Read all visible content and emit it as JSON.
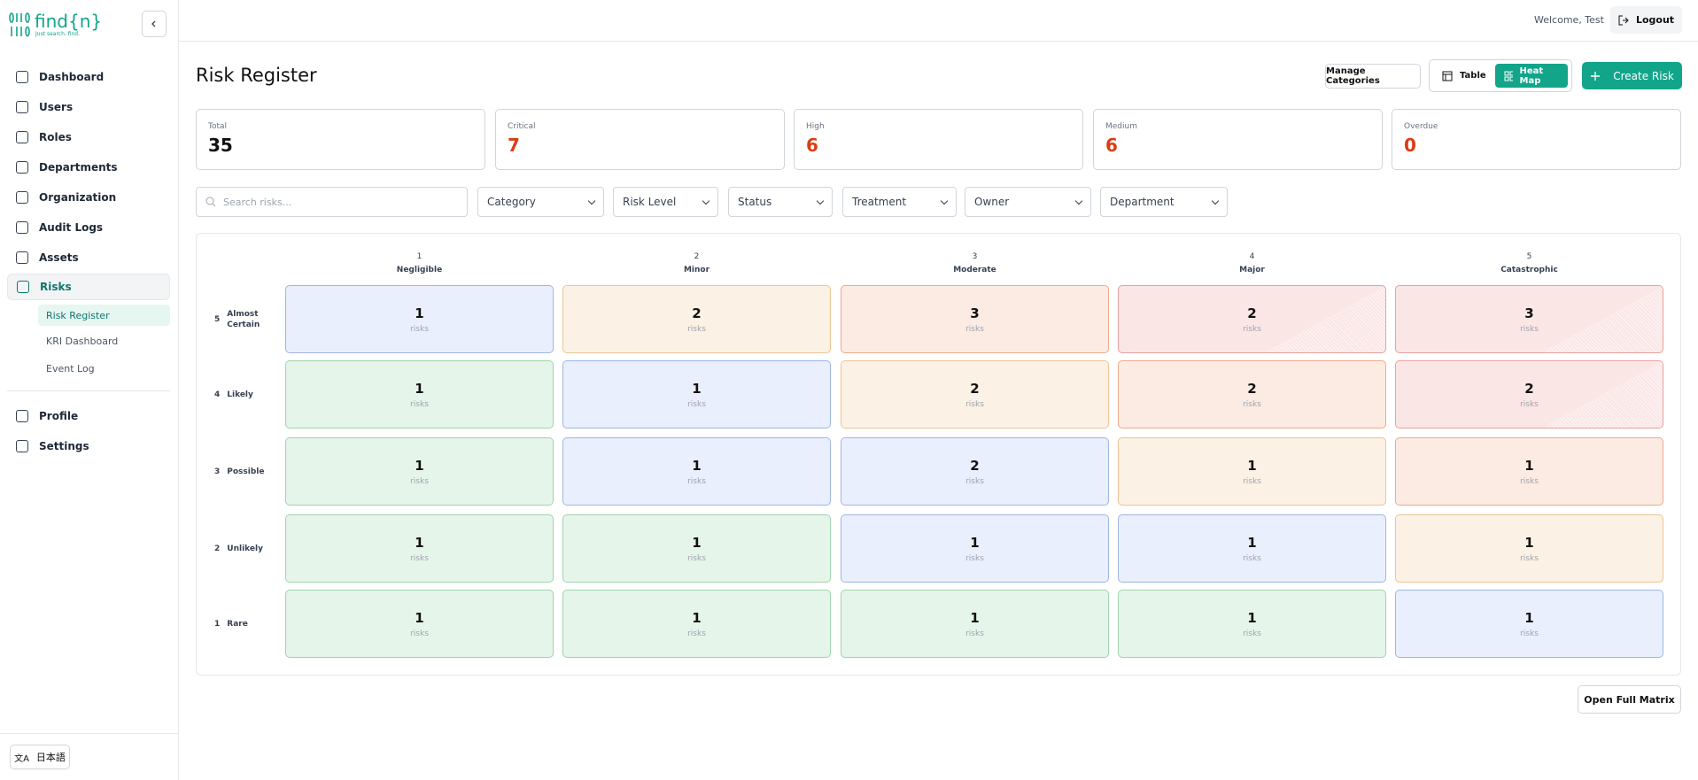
{
  "brand": {
    "name": "find{n}",
    "tagline": "Just search. find."
  },
  "sidebar": {
    "nav": [
      "Dashboard",
      "Users",
      "Roles",
      "Departments",
      "Organization",
      "Audit Logs",
      "Assets"
    ],
    "active": "Risks",
    "sub": [
      "Risk Register",
      "KRI Dashboard",
      "Event Log"
    ],
    "bottom": [
      "Profile",
      "Settings"
    ],
    "language": "日本語"
  },
  "header": {
    "welcome": "Welcome, Test",
    "logout": "Logout"
  },
  "page": {
    "title": "Risk Register",
    "manage": "Manage Categories",
    "table": "Table",
    "heatmap": "Heat Map",
    "create": "Create Risk"
  },
  "stats": [
    {
      "label": "Total",
      "value": 35
    },
    {
      "label": "Critical",
      "value": 7
    },
    {
      "label": "High",
      "value": 6
    },
    {
      "label": "Medium",
      "value": 6
    },
    {
      "label": "Overdue",
      "value": 0
    }
  ],
  "filters": {
    "search": "Search risks...",
    "dropdowns": [
      "Category",
      "Risk Level",
      "Status",
      "Treatment",
      "Owner",
      "Department"
    ]
  },
  "heatmap": {
    "impact": [
      {
        "level": 1,
        "label": "Negligible"
      },
      {
        "level": 2,
        "label": "Minor"
      },
      {
        "level": 3,
        "label": "Moderate"
      },
      {
        "level": 4,
        "label": "Major"
      },
      {
        "level": 5,
        "label": "Catastrophic"
      }
    ],
    "likelihood": [
      {
        "level": 5,
        "label": "Almost Certain"
      },
      {
        "level": 4,
        "label": "Likely"
      },
      {
        "level": 3,
        "label": "Possible"
      },
      {
        "level": 2,
        "label": "Unlikely"
      },
      {
        "level": 1,
        "label": "Rare"
      }
    ],
    "cells": [
      [
        1,
        2,
        3,
        2,
        3
      ],
      [
        1,
        1,
        2,
        2,
        2
      ],
      [
        1,
        1,
        2,
        1,
        1
      ],
      [
        1,
        1,
        1,
        1,
        1
      ],
      [
        1,
        1,
        1,
        1,
        1
      ]
    ],
    "unit": "risks"
  },
  "open_matrix": "Open Full Matrix"
}
